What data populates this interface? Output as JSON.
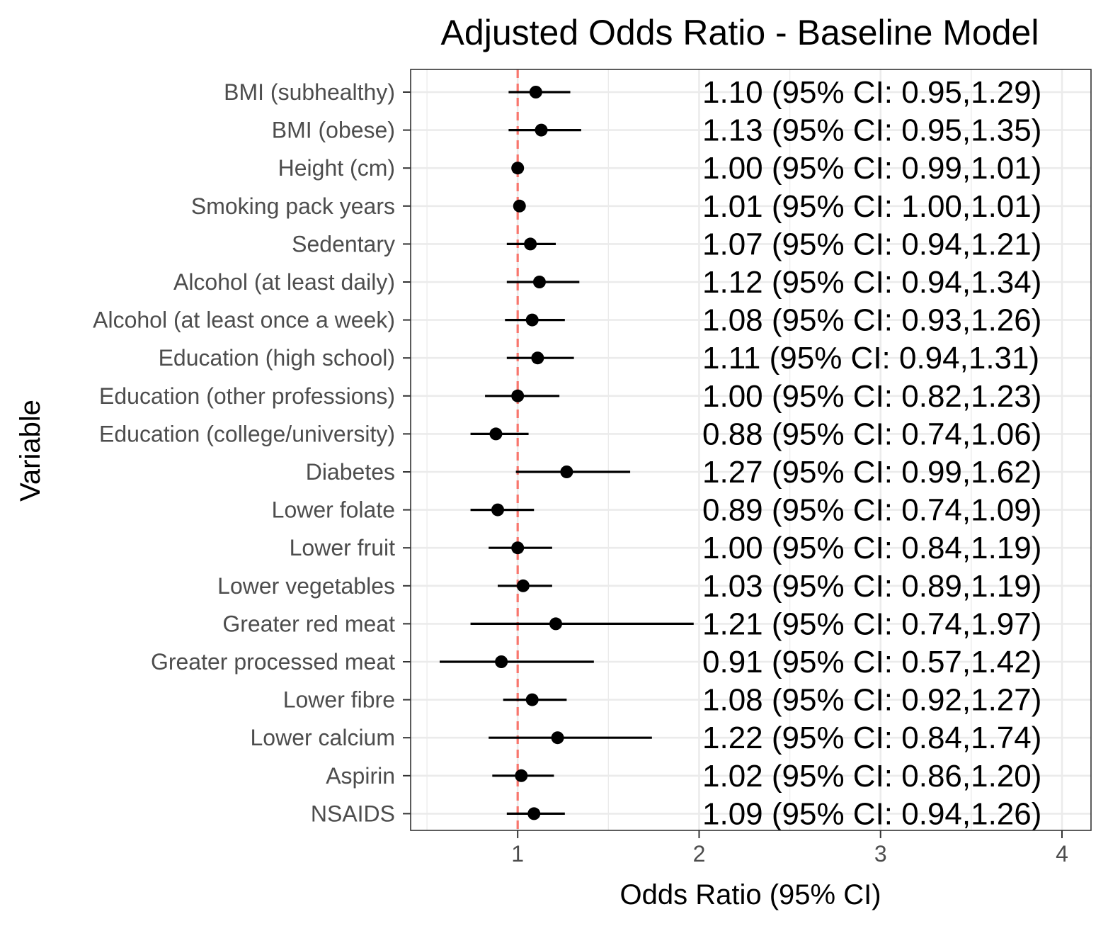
{
  "chart_data": {
    "type": "forest",
    "title": "Adjusted Odds Ratio - Baseline Model",
    "xlabel": "Odds Ratio (95% CI)",
    "ylabel": "Variable",
    "xlim": [
      0.41,
      4.16
    ],
    "xticks": [
      1,
      2,
      3,
      4
    ],
    "xtick_labels": [
      "1",
      "2",
      "3",
      "4"
    ],
    "reference_line": {
      "x": 1,
      "style": "dashed",
      "color": "#f8766d"
    },
    "grid": true,
    "colors": {
      "point": "#000000",
      "line": "#000000",
      "grid": "#ebebeb",
      "panel_border": "#333333"
    },
    "rows": [
      {
        "variable": "BMI (subhealthy)",
        "or": 1.1,
        "lo": 0.95,
        "hi": 1.29,
        "label": "1.10 (95% CI: 0.95,1.29)"
      },
      {
        "variable": "BMI (obese)",
        "or": 1.13,
        "lo": 0.95,
        "hi": 1.35,
        "label": "1.13 (95% CI: 0.95,1.35)"
      },
      {
        "variable": "Height (cm)",
        "or": 1.0,
        "lo": 0.99,
        "hi": 1.01,
        "label": "1.00 (95% CI: 0.99,1.01)"
      },
      {
        "variable": "Smoking pack years",
        "or": 1.01,
        "lo": 1.0,
        "hi": 1.01,
        "label": "1.01 (95% CI: 1.00,1.01)"
      },
      {
        "variable": "Sedentary",
        "or": 1.07,
        "lo": 0.94,
        "hi": 1.21,
        "label": "1.07 (95% CI: 0.94,1.21)"
      },
      {
        "variable": "Alcohol (at least daily)",
        "or": 1.12,
        "lo": 0.94,
        "hi": 1.34,
        "label": "1.12 (95% CI: 0.94,1.34)"
      },
      {
        "variable": "Alcohol (at least once a week)",
        "or": 1.08,
        "lo": 0.93,
        "hi": 1.26,
        "label": "1.08 (95% CI: 0.93,1.26)"
      },
      {
        "variable": "Education (high school)",
        "or": 1.11,
        "lo": 0.94,
        "hi": 1.31,
        "label": "1.11 (95% CI: 0.94,1.31)"
      },
      {
        "variable": "Education (other professions)",
        "or": 1.0,
        "lo": 0.82,
        "hi": 1.23,
        "label": "1.00 (95% CI: 0.82,1.23)"
      },
      {
        "variable": "Education (college/university)",
        "or": 0.88,
        "lo": 0.74,
        "hi": 1.06,
        "label": "0.88 (95% CI: 0.74,1.06)"
      },
      {
        "variable": "Diabetes",
        "or": 1.27,
        "lo": 0.99,
        "hi": 1.62,
        "label": "1.27 (95% CI: 0.99,1.62)"
      },
      {
        "variable": "Lower folate",
        "or": 0.89,
        "lo": 0.74,
        "hi": 1.09,
        "label": "0.89 (95% CI: 0.74,1.09)"
      },
      {
        "variable": "Lower fruit",
        "or": 1.0,
        "lo": 0.84,
        "hi": 1.19,
        "label": "1.00 (95% CI: 0.84,1.19)"
      },
      {
        "variable": "Lower vegetables",
        "or": 1.03,
        "lo": 0.89,
        "hi": 1.19,
        "label": "1.03 (95% CI: 0.89,1.19)"
      },
      {
        "variable": "Greater red meat",
        "or": 1.21,
        "lo": 0.74,
        "hi": 1.97,
        "label": "1.21 (95% CI: 0.74,1.97)"
      },
      {
        "variable": "Greater processed meat",
        "or": 0.91,
        "lo": 0.57,
        "hi": 1.42,
        "label": "0.91 (95% CI: 0.57,1.42)"
      },
      {
        "variable": "Lower fibre",
        "or": 1.08,
        "lo": 0.92,
        "hi": 1.27,
        "label": "1.08 (95% CI: 0.92,1.27)"
      },
      {
        "variable": "Lower calcium",
        "or": 1.22,
        "lo": 0.84,
        "hi": 1.74,
        "label": "1.22 (95% CI: 0.84,1.74)"
      },
      {
        "variable": "Aspirin",
        "or": 1.02,
        "lo": 0.86,
        "hi": 1.2,
        "label": "1.02 (95% CI: 0.86,1.20)"
      },
      {
        "variable": "NSAIDS",
        "or": 1.09,
        "lo": 0.94,
        "hi": 1.26,
        "label": "1.09 (95% CI: 0.94,1.26)"
      }
    ]
  }
}
